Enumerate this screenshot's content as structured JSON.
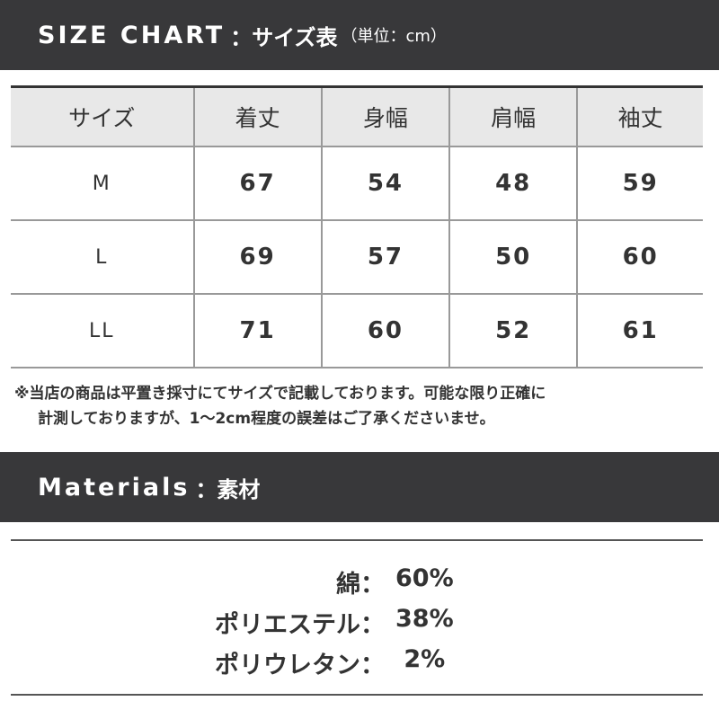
{
  "size_chart": {
    "title_en": "SIZE CHART",
    "title_jp": "：サイズ表",
    "unit": "（単位：cm）",
    "headers": [
      "サイズ",
      "着丈",
      "身幅",
      "肩幅",
      "袖丈"
    ],
    "rows": [
      [
        "M",
        "67",
        "54",
        "48",
        "59"
      ],
      [
        "L",
        "69",
        "57",
        "50",
        "60"
      ],
      [
        "LL",
        "71",
        "60",
        "52",
        "61"
      ]
    ],
    "note_line1": "※当店の商品は平置き採寸にてサイズで記載しております。可能な限り正確に",
    "note_line2": "計測しておりますが、1〜2cm程度の誤差はご了承くださいませ。"
  },
  "materials": {
    "title_en": "Materials",
    "title_jp": "：素材",
    "items": [
      {
        "name": "綿：",
        "value": "60%"
      },
      {
        "name": "ポリエステル：",
        "value": "38%"
      },
      {
        "name": "ポリウレタン：",
        "value": " 2%"
      }
    ]
  },
  "colors": {
    "bar": "#38383a",
    "header_cell": "#e8e8e8"
  }
}
